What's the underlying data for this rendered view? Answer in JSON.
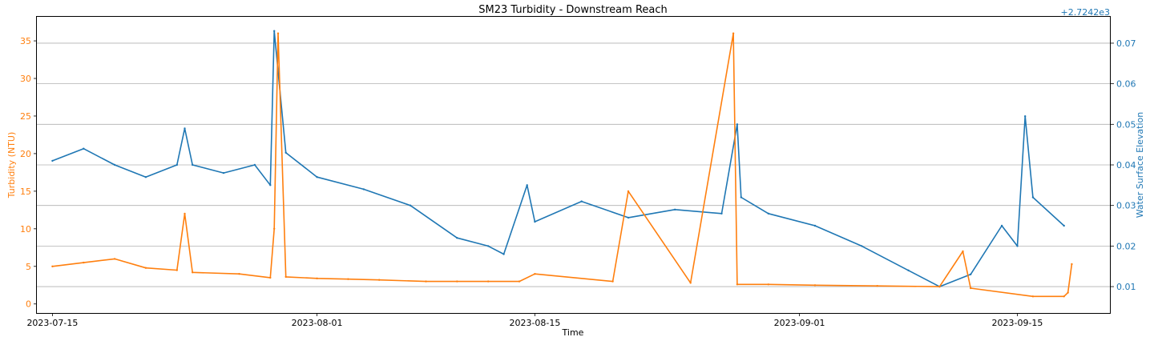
{
  "chart_data": {
    "type": "line",
    "title": "SM23 Turbidity - Downstream Reach",
    "xlabel": "Time",
    "ylabel_left": "Turbidity (NTU)",
    "ylabel_right": "Water Surface Elevation",
    "right_axis_offset_label": "+2.7242e3",
    "xlim": [
      "2023-07-14",
      "2023-09-21"
    ],
    "x_ticks": [
      "2023-07-15",
      "2023-08-01",
      "2023-08-15",
      "2023-09-01",
      "2023-09-15"
    ],
    "ylim_left": [
      -1.2,
      38.2
    ],
    "y_ticks_left": [
      0,
      5,
      10,
      15,
      20,
      25,
      30,
      35
    ],
    "ylim_right": [
      0.0035,
      0.0765
    ],
    "y_ticks_right": [
      0.01,
      0.02,
      0.03,
      0.04,
      0.05,
      0.06,
      0.07
    ],
    "grid": "horizontal lines at right-axis ticks",
    "colors": {
      "turbidity": "#ff7f0e",
      "elevation": "#1f77b4",
      "grid": "#b0b0b0"
    },
    "series": [
      {
        "name": "Turbidity (NTU)",
        "axis": "left",
        "x": [
          "2023-07-15",
          "2023-07-17",
          "2023-07-19",
          "2023-07-21",
          "2023-07-23",
          "2023-07-23 12:00",
          "2023-07-24",
          "2023-07-27",
          "2023-07-29",
          "2023-07-29 06:00",
          "2023-07-29 12:00",
          "2023-07-30",
          "2023-08-01",
          "2023-08-03",
          "2023-08-05",
          "2023-08-08",
          "2023-08-10",
          "2023-08-12",
          "2023-08-14",
          "2023-08-15",
          "2023-08-20",
          "2023-08-21",
          "2023-08-25",
          "2023-08-27 18:00",
          "2023-08-28",
          "2023-08-30",
          "2023-09-02",
          "2023-09-06",
          "2023-09-10",
          "2023-09-11 12:00",
          "2023-09-12",
          "2023-09-16",
          "2023-09-18",
          "2023-09-18 06:00",
          "2023-09-18 12:00"
        ],
        "y": [
          5.0,
          5.5,
          6.0,
          4.8,
          4.5,
          12.0,
          4.2,
          4.0,
          3.5,
          10.0,
          36.0,
          3.6,
          3.4,
          3.3,
          3.2,
          3.0,
          3.0,
          3.0,
          3.0,
          4.0,
          3.0,
          15.0,
          2.8,
          36.0,
          2.6,
          2.6,
          2.5,
          2.4,
          2.3,
          7.0,
          2.1,
          1.0,
          1.0,
          1.5,
          5.3
        ]
      },
      {
        "name": "Water Surface Elevation",
        "axis": "right",
        "x": [
          "2023-07-15",
          "2023-07-17",
          "2023-07-19",
          "2023-07-21",
          "2023-07-23",
          "2023-07-23 12:00",
          "2023-07-24",
          "2023-07-26",
          "2023-07-28",
          "2023-07-29",
          "2023-07-29 06:00",
          "2023-07-30",
          "2023-08-01",
          "2023-08-04",
          "2023-08-07",
          "2023-08-10",
          "2023-08-12",
          "2023-08-13",
          "2023-08-14 12:00",
          "2023-08-15",
          "2023-08-18",
          "2023-08-21",
          "2023-08-24",
          "2023-08-27",
          "2023-08-28",
          "2023-08-28 06:00",
          "2023-08-30",
          "2023-09-02",
          "2023-09-05",
          "2023-09-08",
          "2023-09-10",
          "2023-09-12",
          "2023-09-14",
          "2023-09-15",
          "2023-09-15 12:00",
          "2023-09-16",
          "2023-09-18"
        ],
        "y": [
          0.041,
          0.044,
          0.04,
          0.037,
          0.04,
          0.049,
          0.04,
          0.038,
          0.04,
          0.035,
          0.073,
          0.043,
          0.037,
          0.034,
          0.03,
          0.022,
          0.02,
          0.018,
          0.035,
          0.026,
          0.031,
          0.027,
          0.029,
          0.028,
          0.05,
          0.032,
          0.028,
          0.025,
          0.02,
          0.014,
          0.01,
          0.013,
          0.025,
          0.02,
          0.052,
          0.032,
          0.025
        ]
      }
    ]
  }
}
